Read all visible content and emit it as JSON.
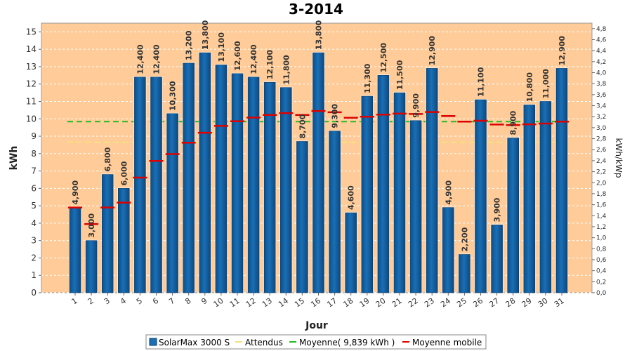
{
  "chart_data": {
    "type": "bar",
    "title": "3-2014",
    "xlabel": "Jour",
    "ylabel": "kWh",
    "y2label": "kWh/kWp",
    "ylim": [
      0,
      15.5
    ],
    "y2lim": [
      0,
      4.9
    ],
    "yticks": [
      0,
      1,
      2,
      3,
      4,
      5,
      6,
      7,
      8,
      9,
      10,
      11,
      12,
      13,
      14,
      15
    ],
    "y2ticks": [
      "0,0",
      "0,2",
      "0,4",
      "0,6",
      "0,8",
      "1,0",
      "1,2",
      "1,4",
      "1,6",
      "1,8",
      "2,0",
      "2,2",
      "2,4",
      "2,6",
      "2,8",
      "3,0",
      "3,2",
      "3,4",
      "3,6",
      "3,8",
      "4,0",
      "4,2",
      "4,4",
      "4,6",
      "4,8"
    ],
    "categories": [
      "1",
      "2",
      "3",
      "4",
      "5",
      "6",
      "7",
      "8",
      "9",
      "10",
      "11",
      "12",
      "13",
      "14",
      "15",
      "16",
      "17",
      "18",
      "19",
      "20",
      "21",
      "22",
      "23",
      "24",
      "25",
      "26",
      "27",
      "28",
      "29",
      "30",
      "31"
    ],
    "series": [
      {
        "name": "SolarMax 3000 S",
        "values": [
          4.9,
          3.0,
          6.8,
          6.0,
          12.4,
          12.4,
          10.3,
          13.2,
          13.8,
          13.1,
          12.6,
          12.4,
          12.1,
          11.8,
          8.7,
          13.8,
          9.3,
          4.6,
          11.3,
          12.5,
          11.5,
          9.9,
          12.9,
          4.9,
          2.2,
          11.1,
          3.9,
          8.9,
          10.8,
          11.0,
          12.9
        ],
        "labels": [
          "4,900",
          "3,000",
          "6,800",
          "6,000",
          "12,400",
          "12,400",
          "10,300",
          "13,200",
          "13,800",
          "13,100",
          "12,600",
          "12,400",
          "12,100",
          "11,800",
          "8,700",
          "13,800",
          "9,300",
          "4,600",
          "11,300",
          "12,500",
          "11,500",
          "9,900",
          "12,900",
          "4,900",
          "2,200",
          "11,100",
          "3,900",
          "8,900",
          "10,800",
          "11,000",
          "12,900"
        ],
        "color": "#1a6fb5"
      },
      {
        "name": "Attendus",
        "value": 8.65,
        "color": "#f5e27a"
      },
      {
        "name": "Moyenne( 9,839 kWh )",
        "value": 9.839,
        "color": "#22bb22"
      },
      {
        "name": "Moyenne mobile",
        "values": [
          4.9,
          3.95,
          4.9,
          5.18,
          6.62,
          7.58,
          7.97,
          8.63,
          9.2,
          9.59,
          9.86,
          10.07,
          10.22,
          10.33,
          10.22,
          10.45,
          10.38,
          10.06,
          10.12,
          10.24,
          10.3,
          10.28,
          10.39,
          10.16,
          9.84,
          9.89,
          9.67,
          9.64,
          9.68,
          9.73,
          9.84
        ],
        "color": "#dd0000"
      }
    ],
    "grid": true,
    "legend_position": "bottom",
    "colors": {
      "plot_background": "#ffcc99",
      "grid": "#ffffff"
    }
  }
}
